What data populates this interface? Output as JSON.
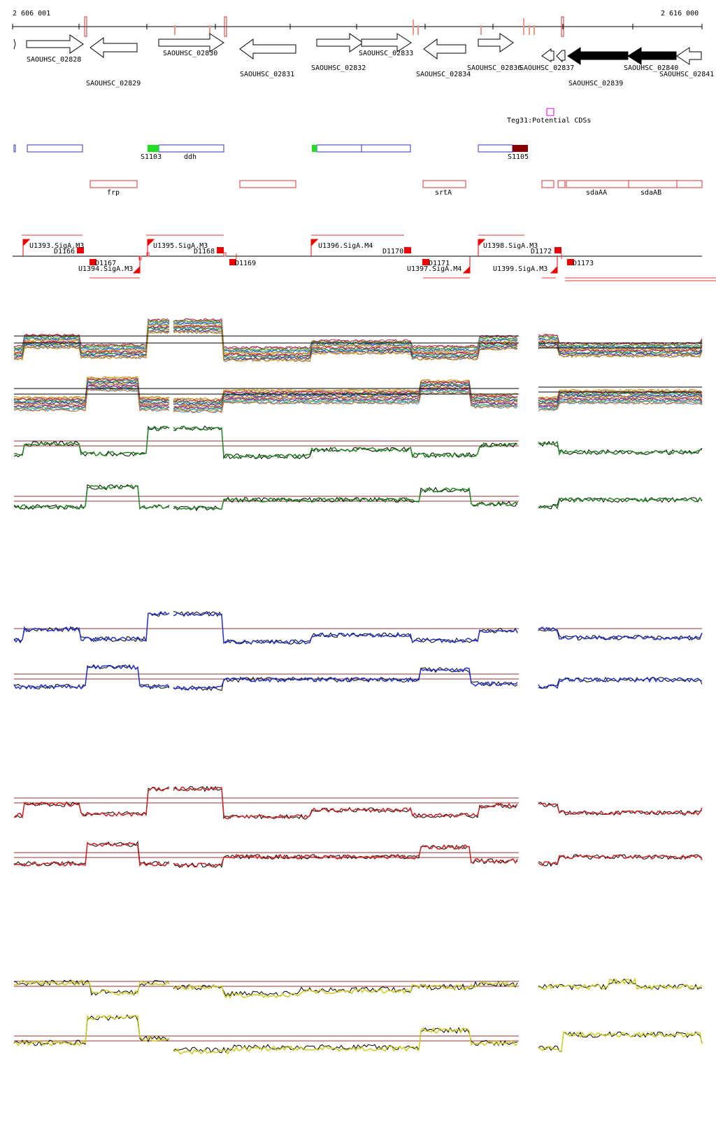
{
  "coords": {
    "start": "2 606 001",
    "end": "2 616 000"
  },
  "genes": [
    {
      "label": "SAOUHSC_02828"
    },
    {
      "label": "SAOUHSC_02829"
    },
    {
      "label": "SAOUHSC_02830"
    },
    {
      "label": "SAOUHSC_02831"
    },
    {
      "label": "SAOUHSC_02832"
    },
    {
      "label": "SAOUHSC_02833"
    },
    {
      "label": "SAOUHSC_02834"
    },
    {
      "label": "SAOUHSC_02836"
    },
    {
      "label": "SAOUHSC_02837"
    },
    {
      "label": "SAOUHSC_02839"
    },
    {
      "label": "SAOUHSC_02840"
    },
    {
      "label": "SAOUHSC_02841"
    }
  ],
  "potential_cds_label": "Teg31:Potential CDSs",
  "blue_features": [
    {
      "label": "S1103"
    },
    {
      "label": "ddh"
    },
    {
      "label": "S1105"
    }
  ],
  "red_features": [
    {
      "label": "frp"
    },
    {
      "label": "srtA"
    },
    {
      "label": "sdaAA"
    },
    {
      "label": "sdaAB"
    }
  ],
  "promoters": [
    {
      "label": "U1393.SigA.M3"
    },
    {
      "label": "U1394.SigA.M3"
    },
    {
      "label": "U1395.SigA.M3"
    },
    {
      "label": "U1396.SigA.M4"
    },
    {
      "label": "U1397.SigA.M4"
    },
    {
      "label": "U1398.SigA.M3"
    },
    {
      "label": "U1399.SigA.M3"
    }
  ],
  "terminators": [
    {
      "label": "D1166"
    },
    {
      "label": "D1167"
    },
    {
      "label": "D1168"
    },
    {
      "label": "D1169"
    },
    {
      "label": "D1170"
    },
    {
      "label": "D1171"
    },
    {
      "label": "D1172"
    },
    {
      "label": "D1173"
    }
  ],
  "colors": {
    "gene_outline": "#000000",
    "blue_feature": "#3333bb",
    "red_feature": "#dd3333",
    "promoter": "#ee0000",
    "green_box": "#22dd22",
    "dark_red_box": "#880000",
    "magenta_box": "#dd00dd",
    "track_green": "#228822",
    "track_blue": "#2233cc",
    "track_red": "#cc2222",
    "track_yellow": "#cccc22",
    "reference_line": "#993333"
  }
}
